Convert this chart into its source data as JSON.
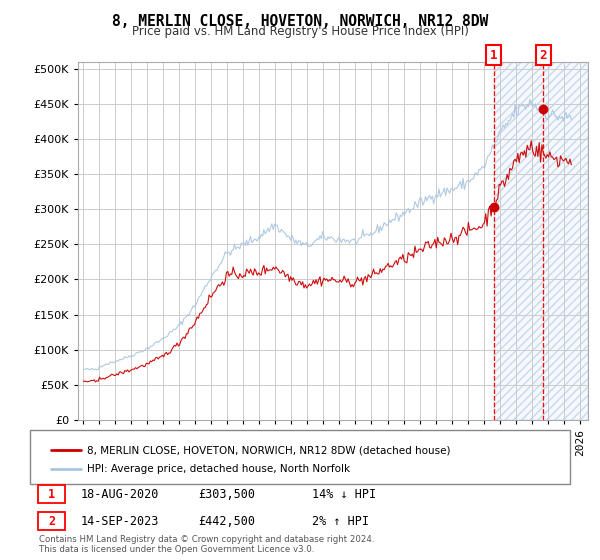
{
  "title": "8, MERLIN CLOSE, HOVETON, NORWICH, NR12 8DW",
  "subtitle": "Price paid vs. HM Land Registry's House Price Index (HPI)",
  "hpi_color": "#a8c4e0",
  "price_color": "#cc0000",
  "sale1_date_label": "18-AUG-2020",
  "sale1_price": 303500,
  "sale1_pct": "14% ↓ HPI",
  "sale2_date_label": "14-SEP-2023",
  "sale2_price": 442500,
  "sale2_pct": "2% ↑ HPI",
  "sale1_x": 2020.63,
  "sale2_x": 2023.71,
  "yticks": [
    0,
    50000,
    100000,
    150000,
    200000,
    250000,
    300000,
    350000,
    400000,
    450000,
    500000
  ],
  "legend_line1": "8, MERLIN CLOSE, HOVETON, NORWICH, NR12 8DW (detached house)",
  "legend_line2": "HPI: Average price, detached house, North Norfolk",
  "footer": "Contains HM Land Registry data © Crown copyright and database right 2024.\nThis data is licensed under the Open Government Licence v3.0."
}
